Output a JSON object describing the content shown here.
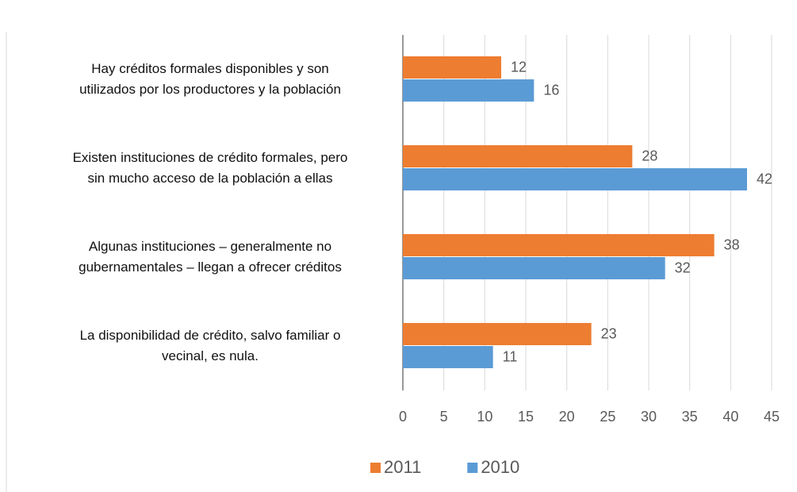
{
  "chart_data": {
    "type": "barh",
    "categories": [
      "Hay créditos formales disponibles y son\nutilizados por los productores y la población",
      "Existen instituciones de crédito formales, pero\nsin mucho acceso de la población a ellas",
      "Algunas instituciones  – generalmente no\ngubernamentales – llegan a ofrecer créditos",
      "La disponibilidad de crédito, salvo familiar o\nvecinal, es nula."
    ],
    "series": [
      {
        "name": "2011",
        "color": "#ed7d31",
        "values": [
          12,
          28,
          38,
          23
        ]
      },
      {
        "name": "2010",
        "color": "#5b9bd5",
        "values": [
          16,
          42,
          32,
          11
        ]
      }
    ],
    "xlim": [
      0,
      45
    ],
    "xticks": [
      0,
      5,
      10,
      15,
      20,
      25,
      30,
      35,
      40,
      45
    ],
    "grid": true,
    "legend": "bottom"
  }
}
